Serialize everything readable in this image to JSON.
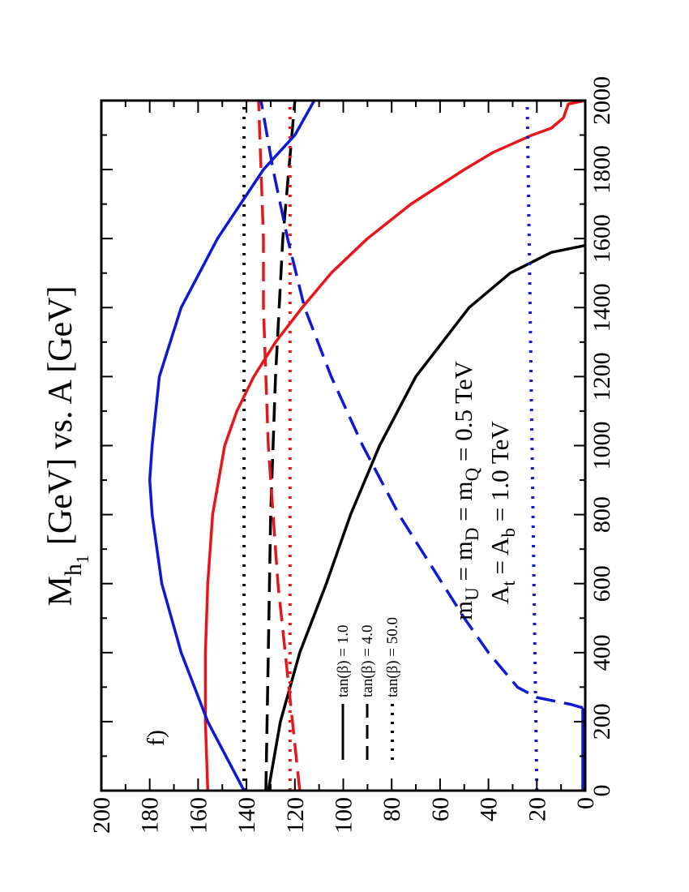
{
  "chart_data": {
    "type": "line",
    "title_parts": {
      "m": "M",
      "h": "h",
      "one": "1",
      "rest": "[GeV] vs. A [GeV]"
    },
    "panel_label": "f)",
    "annotation_lines": [
      {
        "parts": [
          "m",
          "U",
          " = m",
          "D",
          " = m",
          "Q",
          " = 0.5 TeV"
        ]
      },
      {
        "parts": [
          "A",
          "t",
          " = A",
          "b",
          " = 1.0 TeV"
        ]
      }
    ],
    "xlim": [
      0,
      2000
    ],
    "ylim": [
      0,
      200
    ],
    "xticks": [
      "0",
      "200",
      "400",
      "600",
      "800",
      "1000",
      "1200",
      "1400",
      "1600",
      "1800",
      "2000"
    ],
    "yticks": [
      "0",
      "20",
      "40",
      "60",
      "80",
      "100",
      "120",
      "140",
      "160",
      "180",
      "200"
    ],
    "legend": [
      {
        "label": "tan(β) = 1.0",
        "style": "solid"
      },
      {
        "label": "tan(β) = 4.0",
        "style": "dashed"
      },
      {
        "label": "tan(β) = 50.0",
        "style": "dotted"
      }
    ],
    "colors": {
      "black": "#000000",
      "red": "#e8161b",
      "blue": "#0d18d9"
    },
    "series": [
      {
        "color": "black",
        "style": "solid",
        "points": [
          [
            0,
            131
          ],
          [
            200,
            126
          ],
          [
            400,
            118
          ],
          [
            600,
            107
          ],
          [
            800,
            97
          ],
          [
            1000,
            85
          ],
          [
            1200,
            70
          ],
          [
            1400,
            48
          ],
          [
            1500,
            31
          ],
          [
            1560,
            14
          ],
          [
            1580,
            0
          ]
        ]
      },
      {
        "color": "black",
        "style": "dashed",
        "points": [
          [
            0,
            132
          ],
          [
            400,
            131
          ],
          [
            800,
            130
          ],
          [
            1200,
            128
          ],
          [
            1600,
            125
          ],
          [
            2000,
            120
          ]
        ]
      },
      {
        "color": "black",
        "style": "dotted",
        "points": [
          [
            0,
            141
          ],
          [
            2000,
            141
          ]
        ]
      },
      {
        "color": "red",
        "style": "solid",
        "points": [
          [
            0,
            156
          ],
          [
            200,
            157
          ],
          [
            400,
            157
          ],
          [
            600,
            156
          ],
          [
            800,
            154
          ],
          [
            1000,
            149
          ],
          [
            1100,
            144
          ],
          [
            1200,
            137
          ],
          [
            1300,
            128
          ],
          [
            1400,
            117
          ],
          [
            1500,
            105
          ],
          [
            1600,
            90
          ],
          [
            1700,
            72
          ],
          [
            1800,
            50
          ],
          [
            1850,
            38
          ],
          [
            1900,
            22
          ],
          [
            1920,
            14
          ],
          [
            1950,
            9
          ],
          [
            1990,
            7
          ],
          [
            2000,
            0
          ]
        ]
      },
      {
        "color": "red",
        "style": "dashed",
        "points": [
          [
            0,
            118
          ],
          [
            200,
            121
          ],
          [
            400,
            124
          ],
          [
            600,
            127
          ],
          [
            800,
            129
          ],
          [
            1000,
            131
          ],
          [
            1200,
            132
          ],
          [
            1400,
            133
          ],
          [
            1600,
            133
          ],
          [
            1800,
            134
          ],
          [
            2000,
            135
          ]
        ]
      },
      {
        "color": "red",
        "style": "dotted",
        "points": [
          [
            0,
            122
          ],
          [
            2000,
            122
          ]
        ]
      },
      {
        "color": "blue",
        "style": "solid",
        "points": [
          [
            0,
            141
          ],
          [
            200,
            156
          ],
          [
            400,
            167
          ],
          [
            600,
            175
          ],
          [
            800,
            179
          ],
          [
            900,
            180
          ],
          [
            1000,
            179
          ],
          [
            1200,
            176
          ],
          [
            1400,
            167
          ],
          [
            1600,
            152
          ],
          [
            1800,
            133
          ],
          [
            1900,
            120
          ],
          [
            2000,
            112
          ]
        ]
      },
      {
        "color": "blue",
        "style": "dashed",
        "points": [
          [
            240,
            1
          ],
          [
            250,
            6
          ],
          [
            270,
            20
          ],
          [
            300,
            28
          ],
          [
            350,
            34
          ],
          [
            400,
            40
          ],
          [
            500,
            50
          ],
          [
            600,
            59
          ],
          [
            700,
            68
          ],
          [
            800,
            77
          ],
          [
            1000,
            92
          ],
          [
            1200,
            105
          ],
          [
            1400,
            116
          ],
          [
            1600,
            123
          ],
          [
            1800,
            129
          ],
          [
            2000,
            134
          ]
        ]
      },
      {
        "color": "blue",
        "style": "dotted",
        "points": [
          [
            0,
            20
          ],
          [
            2000,
            24
          ]
        ]
      },
      {
        "color": "blue",
        "style": "solid",
        "points": [
          [
            0,
            1
          ],
          [
            100,
            1
          ],
          [
            200,
            1
          ],
          [
            240,
            1
          ]
        ]
      }
    ]
  }
}
